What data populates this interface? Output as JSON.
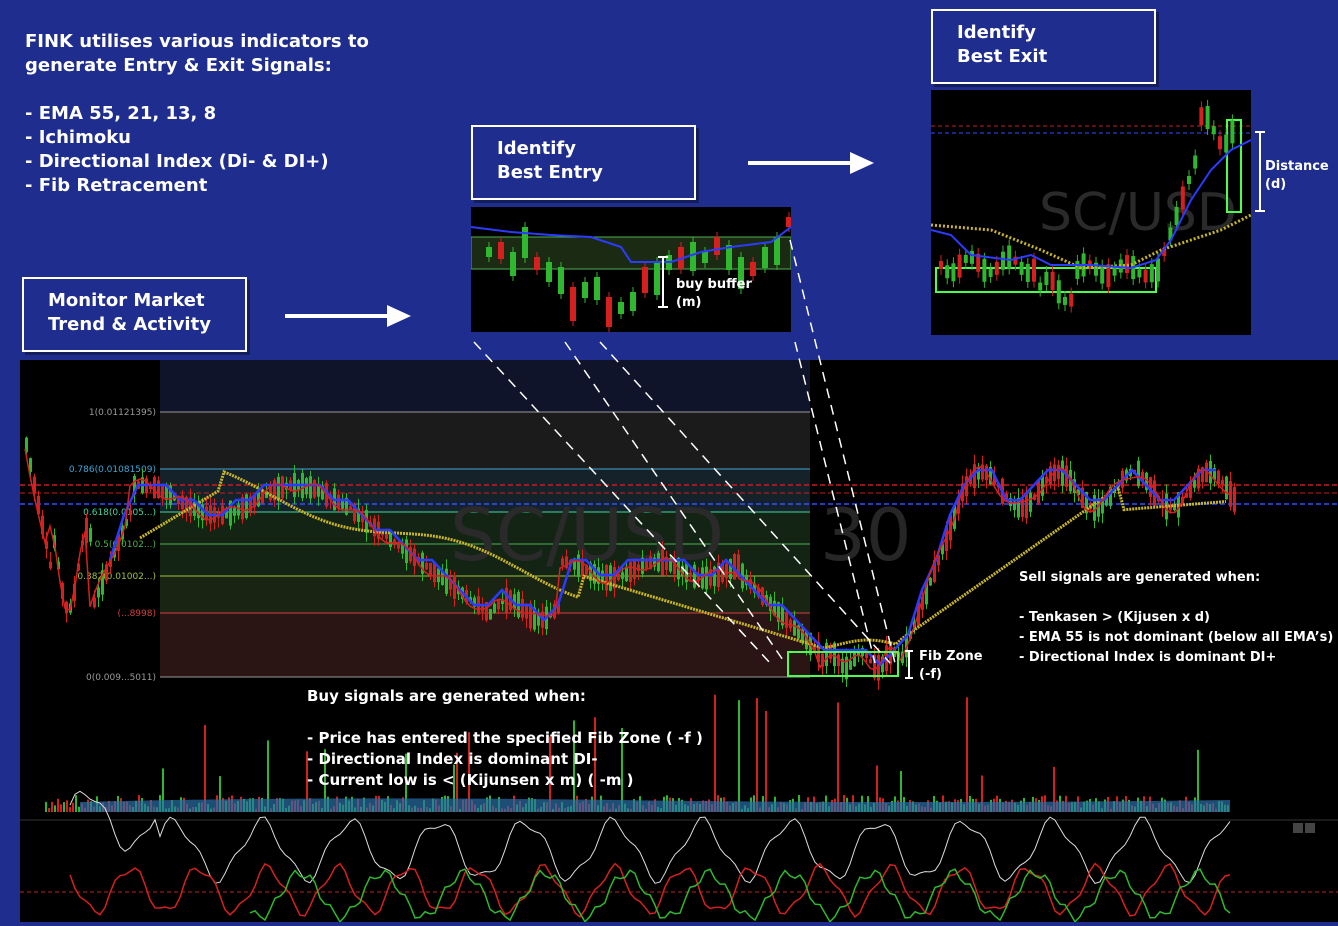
{
  "intro": {
    "lines": [
      "FINK utilises various indicators to",
      "generate Entry & Exit Signals:",
      "",
      "- EMA 55, 21, 13, 8",
      "- Ichimoku",
      "- Directional Index (Di- & DI+)",
      "- Fib Retracement"
    ]
  },
  "steps": {
    "monitor": {
      "line1": "Monitor Market",
      "line2": "Trend & Activity"
    },
    "entry": {
      "line1": "Identify",
      "line2": "Best Entry"
    },
    "exit": {
      "line1": "Identify",
      "line2": "Best Exit"
    }
  },
  "annotations": {
    "buy_buffer_line1": "buy buffer",
    "buy_buffer_line2": "(m)",
    "distance_line1": "Distance",
    "distance_line2": "(d)",
    "fib_zone_line1": "Fib Zone",
    "fib_zone_line2": "(-f)"
  },
  "watermark": {
    "pair": "SC/USD",
    "pair_thumb": "SC/USD"
  },
  "fib_levels": [
    {
      "label": "1(0.01121395)",
      "color": "#9a9a9a"
    },
    {
      "label": "0.786(0.01081509)",
      "color": "#3fa7d6"
    },
    {
      "label": "0.618(0.0105...)",
      "color": "#3fd6a0"
    },
    {
      "label": "0.5(0.0102...)",
      "color": "#4caf50"
    },
    {
      "label": "0.382(0.01002...)",
      "color": "#a0c040"
    },
    {
      "label": "(...8998)",
      "color": "#d04040"
    },
    {
      "label": "0(0.009...5011)",
      "color": "#9a9a9a"
    }
  ],
  "buy_signals": {
    "title": "Buy signals are generated when:",
    "items": [
      "- Price has entered the specified Fib Zone ( -f )",
      "- Directional Index is dominant DI-",
      "- Current low is < (Kijunsen x m) ( -m )"
    ]
  },
  "sell_signals": {
    "title": "Sell signals are generated when:",
    "items": [
      "- Tenkasen > (Kijusen x d)",
      "- EMA 55 is not dominant (below all EMA’s)",
      "- Directional Index is dominant DI+"
    ]
  },
  "colors": {
    "background": "#1f2e8e",
    "bullish": "#2fb82f",
    "bearish": "#d62020",
    "kijun": "#2b3bff",
    "ema55": "#c8b428"
  }
}
